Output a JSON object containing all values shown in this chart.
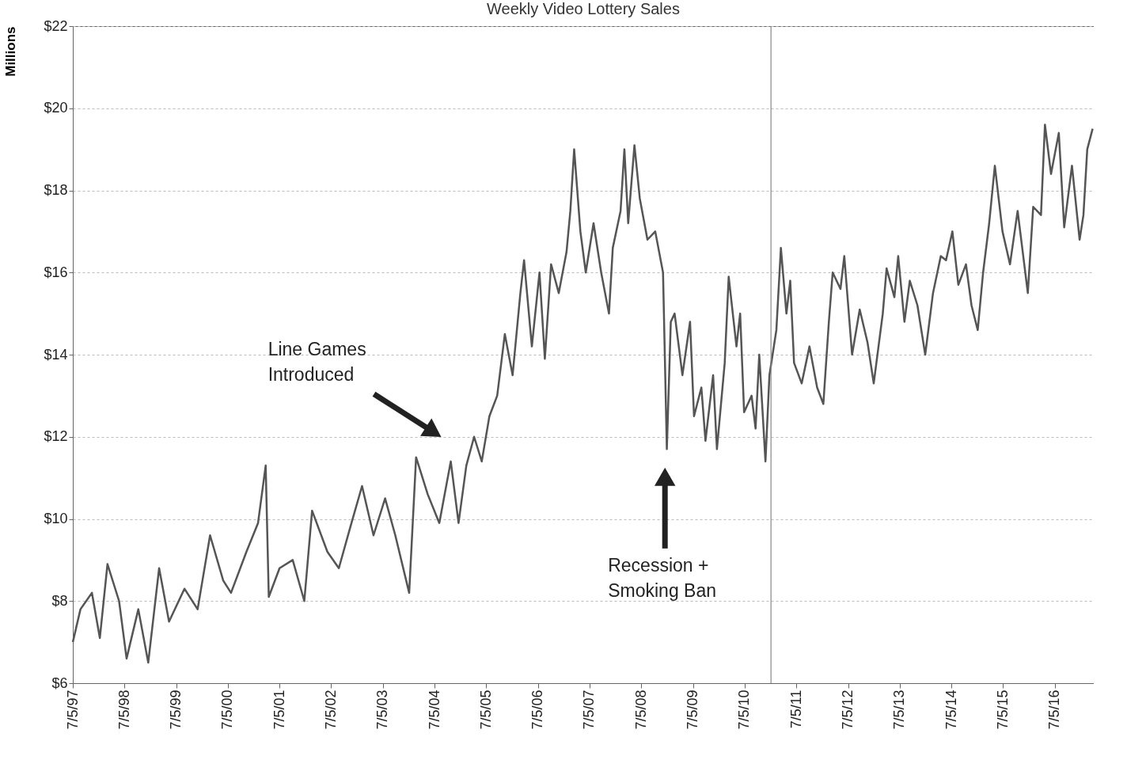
{
  "chart_data": {
    "type": "line",
    "title": "Weekly Video Lottery Sales",
    "ylabel": "Millions",
    "x": [
      "1997-07-05",
      "1997-08-28",
      "1997-11-17",
      "1998-01-12",
      "1998-03-07",
      "1998-05-28",
      "1998-07-20",
      "1998-10-11",
      "1998-12-20",
      "1999-03-07",
      "1999-05-16",
      "1999-09-02",
      "1999-12-04",
      "2000-03-01",
      "2000-06-02",
      "2000-07-27",
      "2000-11-13",
      "2001-02-03",
      "2001-03-29",
      "2001-04-20",
      "2001-07-05",
      "2001-10-06",
      "2001-12-27",
      "2002-02-20",
      "2002-06-08",
      "2002-08-28",
      "2002-11-17",
      "2003-02-08",
      "2003-04-30",
      "2003-07-21",
      "2003-10-01",
      "2004-01-07",
      "2004-02-25",
      "2004-05-17",
      "2004-08-07",
      "2004-10-27",
      "2004-12-21",
      "2005-02-14",
      "2005-04-10",
      "2005-06-03",
      "2005-07-27",
      "2005-09-20",
      "2005-11-13",
      "2006-01-07",
      "2006-03-03",
      "2006-03-29",
      "2006-05-23",
      "2006-07-16",
      "2006-08-23",
      "2006-10-06",
      "2006-11-29",
      "2007-01-23",
      "2007-02-19",
      "2007-03-18",
      "2007-05-01",
      "2007-06-08",
      "2007-08-02",
      "2007-09-25",
      "2007-11-19",
      "2007-12-16",
      "2008-02-09",
      "2008-03-07",
      "2008-04-03",
      "2008-05-17",
      "2008-06-24",
      "2008-08-17",
      "2008-10-11",
      "2008-12-05",
      "2009-01-01",
      "2009-01-29",
      "2009-02-25",
      "2009-04-21",
      "2009-06-14",
      "2009-07-12",
      "2009-09-02",
      "2009-10-01",
      "2009-11-24",
      "2009-12-21",
      "2010-02-14",
      "2010-03-14",
      "2010-05-08",
      "2010-06-03",
      "2010-07-01",
      "2010-08-23",
      "2010-09-20",
      "2010-10-16",
      "2010-11-29",
      "2010-12-27",
      "2011-02-14",
      "2011-03-18",
      "2011-04-26",
      "2011-05-23",
      "2011-06-19",
      "2011-08-12",
      "2011-10-06",
      "2011-11-29",
      "2012-01-12",
      "2012-02-20",
      "2012-03-18",
      "2012-05-12",
      "2012-06-08",
      "2012-08-02",
      "2012-09-25",
      "2012-11-19",
      "2013-01-02",
      "2013-03-07",
      "2013-04-03",
      "2013-05-28",
      "2013-06-24",
      "2013-08-07",
      "2013-09-14",
      "2013-11-07",
      "2014-01-01",
      "2014-02-25",
      "2014-04-21",
      "2014-05-28",
      "2014-07-12",
      "2014-08-23",
      "2014-10-16",
      "2014-11-24",
      "2015-01-07",
      "2015-02-14",
      "2015-03-29",
      "2015-05-08",
      "2015-07-01",
      "2015-08-23",
      "2015-10-16",
      "2015-12-27",
      "2016-02-03",
      "2016-03-29",
      "2016-04-26",
      "2016-06-08",
      "2016-08-02",
      "2016-09-09",
      "2016-11-03",
      "2016-12-27",
      "2017-01-23",
      "2017-02-19",
      "2017-03-29"
    ],
    "series": [
      {
        "color": "#555555",
        "values": [
          7.0,
          7.8,
          8.2,
          7.1,
          8.9,
          8.0,
          6.6,
          7.8,
          6.5,
          8.8,
          7.5,
          8.3,
          7.8,
          9.6,
          8.5,
          8.2,
          9.2,
          9.9,
          11.3,
          8.1,
          8.8,
          9.0,
          8.0,
          10.2,
          9.2,
          8.8,
          9.8,
          10.8,
          9.6,
          10.5,
          9.6,
          8.2,
          11.5,
          10.6,
          9.9,
          11.4,
          9.9,
          11.3,
          12.0,
          11.4,
          12.5,
          13.0,
          14.5,
          13.5,
          15.5,
          16.3,
          14.2,
          16.0,
          13.9,
          16.2,
          15.5,
          16.5,
          17.5,
          19.0,
          17.0,
          16.0,
          17.2,
          16.0,
          15.0,
          16.6,
          17.5,
          19.0,
          17.2,
          19.1,
          17.8,
          16.8,
          17.0,
          16.0,
          11.7,
          14.8,
          15.0,
          13.5,
          14.8,
          12.5,
          13.2,
          11.9,
          13.5,
          11.7,
          13.8,
          15.9,
          14.2,
          15.0,
          12.6,
          13.0,
          12.2,
          14.0,
          11.4,
          13.5,
          14.6,
          16.6,
          15.0,
          15.8,
          13.8,
          13.3,
          14.2,
          13.2,
          12.8,
          14.8,
          16.0,
          15.6,
          16.4,
          14.0,
          15.1,
          14.3,
          13.3,
          15.0,
          16.1,
          15.4,
          16.4,
          14.8,
          15.8,
          15.2,
          14.0,
          15.5,
          16.4,
          16.3,
          17.0,
          15.7,
          16.2,
          15.2,
          14.6,
          16.0,
          17.2,
          18.6,
          17.0,
          16.2,
          17.5,
          15.5,
          17.6,
          17.4,
          19.6,
          18.4,
          19.4,
          17.1,
          18.6,
          16.8,
          17.4,
          19.0,
          19.5
        ]
      }
    ],
    "xlim": [
      "1997-07-05",
      "2017-04-06"
    ],
    "xticks": [
      {
        "value": "1997-07-05",
        "label": "7/5/97"
      },
      {
        "value": "1998-07-05",
        "label": "7/5/98"
      },
      {
        "value": "1999-07-05",
        "label": "7/5/99"
      },
      {
        "value": "2000-07-05",
        "label": "7/5/00"
      },
      {
        "value": "2001-07-05",
        "label": "7/5/01"
      },
      {
        "value": "2002-07-05",
        "label": "7/5/02"
      },
      {
        "value": "2003-07-05",
        "label": "7/5/03"
      },
      {
        "value": "2004-07-05",
        "label": "7/5/04"
      },
      {
        "value": "2005-07-05",
        "label": "7/5/05"
      },
      {
        "value": "2006-07-05",
        "label": "7/5/06"
      },
      {
        "value": "2007-07-05",
        "label": "7/5/07"
      },
      {
        "value": "2008-07-05",
        "label": "7/5/08"
      },
      {
        "value": "2009-07-05",
        "label": "7/5/09"
      },
      {
        "value": "2010-07-05",
        "label": "7/5/10"
      },
      {
        "value": "2011-07-05",
        "label": "7/5/11"
      },
      {
        "value": "2012-07-05",
        "label": "7/5/12"
      },
      {
        "value": "2013-07-05",
        "label": "7/5/13"
      },
      {
        "value": "2014-07-05",
        "label": "7/5/14"
      },
      {
        "value": "2015-07-05",
        "label": "7/5/15"
      },
      {
        "value": "2016-07-05",
        "label": "7/5/16"
      }
    ],
    "ylim": [
      6,
      22
    ],
    "yticks": [
      {
        "value": 6,
        "label": "$6"
      },
      {
        "value": 8,
        "label": "$8"
      },
      {
        "value": 10,
        "label": "$10"
      },
      {
        "value": 12,
        "label": "$12"
      },
      {
        "value": 14,
        "label": "$14"
      },
      {
        "value": 16,
        "label": "$16"
      },
      {
        "value": 18,
        "label": "$18"
      },
      {
        "value": 20,
        "label": "$20"
      },
      {
        "value": 22,
        "label": "$22"
      }
    ],
    "grid": "y",
    "line_style": "solid",
    "marker": "none",
    "ref_lines": [
      {
        "axis": "x",
        "value": "2011-01-07",
        "color": "#888888"
      }
    ],
    "annotations": [
      "Line Games\nIntroduced",
      "Recession +\nSmoking Ban"
    ]
  }
}
